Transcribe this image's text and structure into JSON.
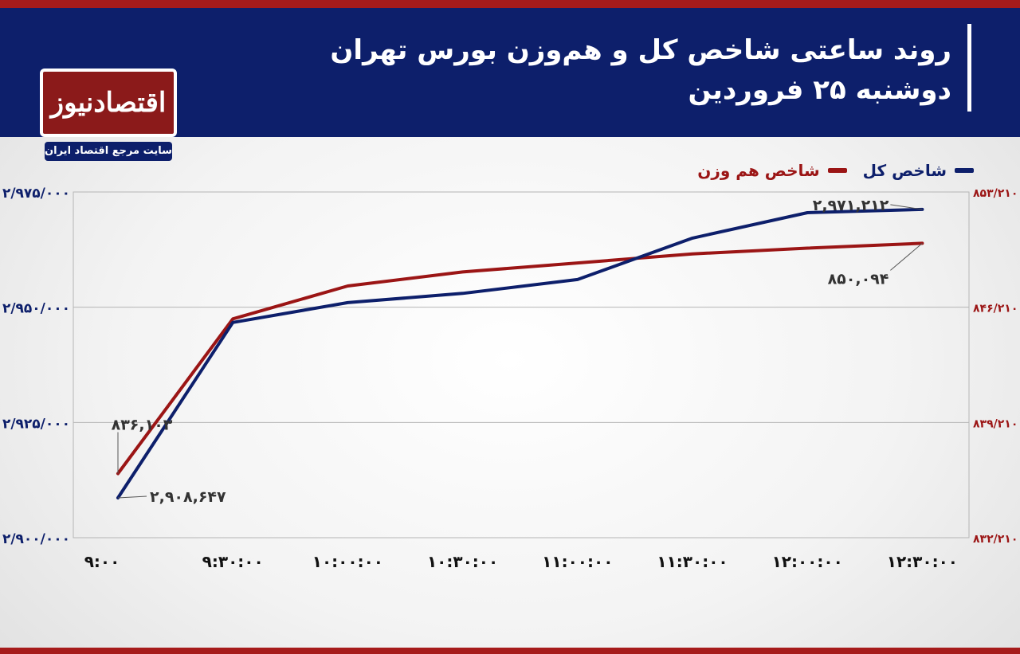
{
  "header": {
    "title_line1": "روند ساعتی شاخص کل و هم‌وزن بورس تهران",
    "title_line2": "دوشنبه ۲۵ فروردین"
  },
  "logo": {
    "text": "اقتصادنیوز",
    "tagline": "سایت مرجع اقتصاد ایران"
  },
  "colors": {
    "header_bg": "#0d1f6b",
    "accent_red": "#a61b1b",
    "series_total": "#0d1f6b",
    "series_equal": "#9b1515"
  },
  "chart_data": {
    "type": "line",
    "categories": [
      "9:00",
      "9:30:00",
      "10:00:00",
      "10:30:00",
      "11:00:00",
      "11:30:00",
      "12:00:00",
      "12:30:00"
    ],
    "series": [
      {
        "name": "شاخص کل",
        "axis": "left",
        "color": "#0d1f6b",
        "values": [
          2908647,
          2946700,
          2951000,
          2953000,
          2956000,
          2965000,
          2970500,
          2971212
        ]
      },
      {
        "name": "شاخص هم وزن",
        "axis": "right",
        "color": "#9b1515",
        "values": [
          836103,
          845500,
          847500,
          848350,
          848900,
          849450,
          849800,
          850094
        ]
      }
    ],
    "left_axis": {
      "ylim": [
        2900000,
        2975000
      ],
      "ticks": [
        2900000,
        2925000,
        2950000,
        2975000
      ],
      "tick_labels": [
        "۲/۹۰۰/۰۰۰",
        "۲/۹۲۵/۰۰۰",
        "۲/۹۵۰/۰۰۰",
        "۲/۹۷۵/۰۰۰"
      ]
    },
    "right_axis": {
      "ylim": [
        832210,
        853210
      ],
      "ticks": [
        832210,
        839210,
        846210,
        853210
      ],
      "tick_labels": [
        "۸۳۲/۲۱۰",
        "۸۳۹/۲۱۰",
        "۸۴۶/۲۱۰",
        "۸۵۳/۲۱۰"
      ]
    },
    "x_tick_labels": [
      "۹:۰۰",
      "۹:۳۰:۰۰",
      "۱۰:۰۰:۰۰",
      "۱۰:۳۰:۰۰",
      "۱۱:۰۰:۰۰",
      "۱۱:۳۰:۰۰",
      "۱۲:۰۰:۰۰",
      "۱۲:۳۰:۰۰"
    ],
    "annotations": [
      {
        "series": 0,
        "index": 0,
        "text": "۲,۹۰۸,۶۴۷"
      },
      {
        "series": 0,
        "index": 7,
        "text": "۲,۹۷۱,۲۱۲"
      },
      {
        "series": 1,
        "index": 0,
        "text": "۸۳۶,۱۰۳"
      },
      {
        "series": 1,
        "index": 7,
        "text": "۸۵۰,۰۹۴"
      }
    ],
    "grid": true,
    "legend_position": "top-right"
  }
}
